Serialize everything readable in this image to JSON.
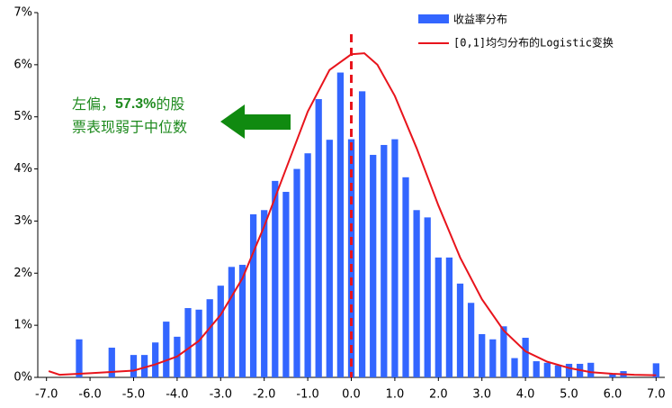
{
  "chart_data": {
    "type": "bar",
    "series": [
      {
        "name": "收益率分布",
        "type": "bar",
        "color": "#3366ff",
        "x": [
          -6.25,
          -5.5,
          -5.0,
          -4.75,
          -4.5,
          -4.25,
          -4.0,
          -3.75,
          -3.5,
          -3.25,
          -3.0,
          -2.75,
          -2.5,
          -2.25,
          -2.0,
          -1.75,
          -1.5,
          -1.25,
          -1.0,
          -0.75,
          -0.5,
          -0.25,
          0.0,
          0.25,
          0.5,
          0.75,
          1.0,
          1.25,
          1.5,
          1.75,
          2.0,
          2.25,
          2.5,
          2.75,
          3.0,
          3.25,
          3.5,
          3.75,
          4.0,
          4.25,
          4.5,
          4.75,
          5.0,
          5.25,
          5.5,
          6.0,
          6.25,
          7.0
        ],
        "values": [
          0.73,
          0.57,
          0.43,
          0.43,
          0.67,
          1.07,
          0.78,
          1.33,
          1.3,
          1.5,
          1.76,
          2.12,
          2.16,
          3.13,
          3.21,
          3.77,
          3.56,
          4.0,
          4.3,
          5.34,
          4.56,
          5.85,
          4.57,
          5.49,
          4.27,
          4.46,
          4.57,
          3.84,
          3.21,
          3.07,
          2.3,
          2.3,
          1.8,
          1.43,
          0.83,
          0.73,
          0.98,
          0.37,
          0.76,
          0.31,
          0.28,
          0.23,
          0.26,
          0.26,
          0.28,
          0.07,
          0.12,
          0.27
        ]
      },
      {
        "name": "[0,1]均匀分布的Logistic变换",
        "type": "line",
        "color": "#e8141c",
        "x": [
          -6.95,
          -6.7,
          -6.0,
          -5.0,
          -4.5,
          -4.0,
          -3.5,
          -3.0,
          -2.5,
          -2.0,
          -1.5,
          -1.0,
          -0.5,
          0.0,
          0.3,
          0.6,
          1.0,
          1.5,
          2.0,
          2.5,
          3.0,
          3.5,
          4.0,
          4.5,
          5.0,
          5.5,
          6.0,
          6.5,
          7.0
        ],
        "values": [
          0.12,
          0.05,
          0.08,
          0.13,
          0.25,
          0.4,
          0.7,
          1.2,
          1.9,
          2.9,
          4.0,
          5.1,
          5.9,
          6.2,
          6.22,
          6.0,
          5.4,
          4.4,
          3.3,
          2.3,
          1.5,
          0.9,
          0.5,
          0.3,
          0.18,
          0.1,
          0.07,
          0.05,
          0.04
        ]
      }
    ],
    "xlim": [
      -7.2,
      7.2
    ],
    "xticks": [
      {
        "value": -7,
        "label": "-7.0"
      },
      {
        "value": -6,
        "label": "-6.0"
      },
      {
        "value": -5,
        "label": "-5.0"
      },
      {
        "value": -4,
        "label": "-4.0"
      },
      {
        "value": -3,
        "label": "-3.0"
      },
      {
        "value": -2,
        "label": "-2.0"
      },
      {
        "value": -1,
        "label": "-1.0"
      },
      {
        "value": 0,
        "label": "0.0"
      },
      {
        "value": 1,
        "label": "1.0"
      },
      {
        "value": 2,
        "label": "2.0"
      },
      {
        "value": 3,
        "label": "3.0"
      },
      {
        "value": 4,
        "label": "4.0"
      },
      {
        "value": 5,
        "label": "5.0"
      },
      {
        "value": 6,
        "label": "6.0"
      },
      {
        "value": 7,
        "label": "7.0"
      }
    ],
    "ylim": [
      0,
      7
    ],
    "yticks": [
      {
        "value": 0,
        "label": "0%"
      },
      {
        "value": 1,
        "label": "1%"
      },
      {
        "value": 2,
        "label": "2%"
      },
      {
        "value": 3,
        "label": "3%"
      },
      {
        "value": 4,
        "label": "4%"
      },
      {
        "value": 5,
        "label": "5%"
      },
      {
        "value": 6,
        "label": "6%"
      },
      {
        "value": 7,
        "label": "7%"
      }
    ],
    "vline": 0,
    "annotation": {
      "line1": [
        "左偏，",
        "57.3%",
        "的股"
      ],
      "line2": "票表现弱于中位数"
    }
  }
}
